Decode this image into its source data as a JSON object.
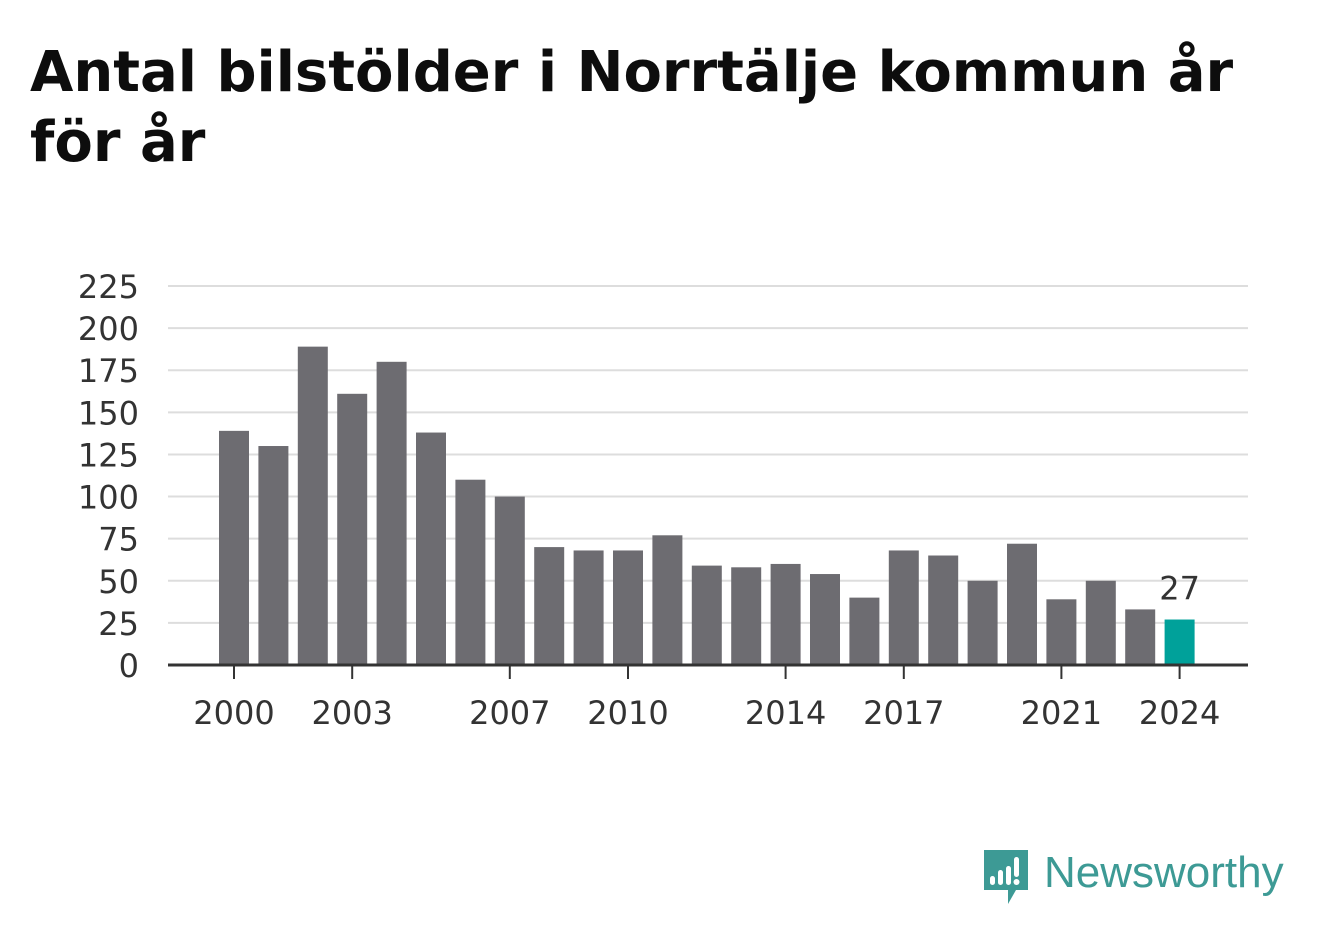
{
  "title": "Antal bilstölder i Norrtälje kommun år för år",
  "brand": {
    "name": "Newsworthy",
    "icon": "newsworthy-logo-icon",
    "color": "#3d9a95"
  },
  "colors": {
    "bar": "#6d6c71",
    "highlight": "#00a19a",
    "grid": "#dddddd",
    "axis": "#333333"
  },
  "chart_data": {
    "type": "bar",
    "title": "Antal bilstölder i Norrtälje kommun år för år",
    "xlabel": "",
    "ylabel": "",
    "categories": [
      "2000",
      "2001",
      "2002",
      "2003",
      "2004",
      "2005",
      "2006",
      "2007",
      "2008",
      "2009",
      "2010",
      "2011",
      "2012",
      "2013",
      "2014",
      "2015",
      "2016",
      "2017",
      "2018",
      "2019",
      "2020",
      "2021",
      "2022",
      "2023",
      "2024"
    ],
    "values": [
      139,
      130,
      189,
      161,
      180,
      138,
      110,
      100,
      70,
      68,
      68,
      77,
      59,
      58,
      60,
      54,
      40,
      68,
      65,
      50,
      72,
      39,
      50,
      33,
      27
    ],
    "ylim": [
      0,
      225
    ],
    "yticks": [
      "0",
      "25",
      "50",
      "75",
      "100",
      "125",
      "150",
      "175",
      "200",
      "225"
    ],
    "xticks": [
      "2000",
      "2003",
      "2007",
      "2010",
      "2014",
      "2017",
      "2021",
      "2024"
    ],
    "highlight": {
      "category": "2024",
      "label": "27"
    },
    "grid": true,
    "legend": "none"
  }
}
